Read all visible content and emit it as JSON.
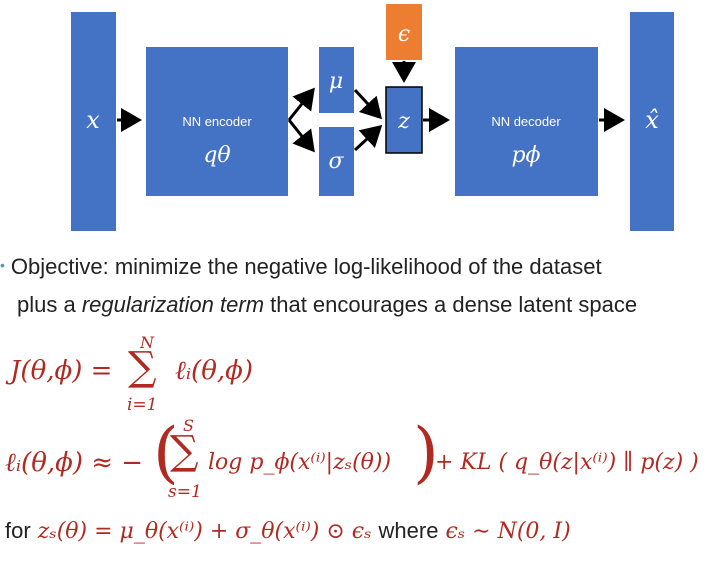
{
  "diagram": {
    "input_symbol": "x",
    "encoder_label": "NN encoder",
    "encoder_symbol": "qθ",
    "mu_symbol": "μ",
    "sigma_symbol": "σ",
    "epsilon_symbol": "ϵ",
    "z_symbol": "z",
    "decoder_label": "NN decoder",
    "decoder_symbol": "pϕ",
    "output_symbol": "x̂",
    "colors": {
      "box": "#4472c4",
      "noise": "#ed7d31",
      "arrow": "#000000"
    }
  },
  "text": {
    "bullet": "•",
    "objective_prefix": "Objective: minimize the negative log-likelihood of the dataset",
    "objective_line2_prefix": "plus a ",
    "objective_emphasis": "regularization term",
    "objective_line2_suffix": " that encourages a dense latent space",
    "eq1_lhs": "J(θ,ϕ) =",
    "eq1_sum_top": "N",
    "eq1_sum_bottom": "i=1",
    "eq1_term": "ℓᵢ(θ,ϕ)",
    "eq2_lhs": "ℓᵢ(θ,ϕ) ≈ −",
    "eq2_sum_top": "S",
    "eq2_sum_bottom": "s=1",
    "eq2_inner": "log p_ϕ(x⁽ⁱ⁾|zₛ(θ))",
    "eq2_rhs": "+ KL ( q_θ(z|x⁽ⁱ⁾) ∥ p(z) )",
    "eq3_prefix": "for",
    "eq3_main": "zₛ(θ) = μ_θ(x⁽ⁱ⁾) + σ_θ(x⁽ⁱ⁾) ⊙ ϵₛ",
    "eq3_where": "where",
    "eq3_tail": "ϵₛ ∼ N(0, I)"
  }
}
